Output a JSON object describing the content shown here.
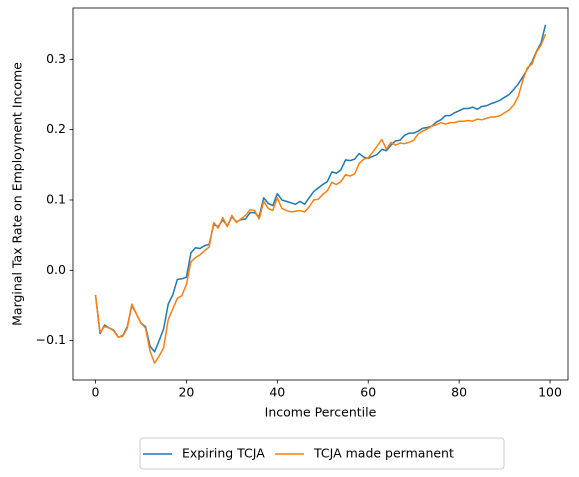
{
  "chart_data": {
    "type": "line",
    "x_label": "Income Percentile",
    "y_label": "Marginal Tax Rate on Employment Income",
    "x": [
      0,
      1,
      2,
      3,
      4,
      5,
      6,
      7,
      8,
      9,
      10,
      11,
      12,
      13,
      14,
      15,
      16,
      17,
      18,
      19,
      20,
      21,
      22,
      23,
      24,
      25,
      26,
      27,
      28,
      29,
      30,
      31,
      32,
      33,
      34,
      35,
      36,
      37,
      38,
      39,
      40,
      41,
      42,
      43,
      44,
      45,
      46,
      47,
      48,
      49,
      50,
      51,
      52,
      53,
      54,
      55,
      56,
      57,
      58,
      59,
      60,
      61,
      62,
      63,
      64,
      65,
      66,
      67,
      68,
      69,
      70,
      71,
      72,
      73,
      74,
      75,
      76,
      77,
      78,
      79,
      80,
      81,
      82,
      83,
      84,
      85,
      86,
      87,
      88,
      89,
      90,
      91,
      92,
      93,
      94,
      95,
      96,
      97,
      98,
      99
    ],
    "series": [
      {
        "name": "Expiring TCJA",
        "color": "#1f77b4",
        "values": [
          -0.035,
          -0.09,
          -0.078,
          -0.082,
          -0.085,
          -0.095,
          -0.093,
          -0.08,
          -0.05,
          -0.062,
          -0.075,
          -0.08,
          -0.108,
          -0.116,
          -0.1,
          -0.083,
          -0.048,
          -0.035,
          -0.013,
          -0.012,
          -0.01,
          0.025,
          0.032,
          0.031,
          0.035,
          0.037,
          0.065,
          0.062,
          0.072,
          0.063,
          0.076,
          0.069,
          0.072,
          0.073,
          0.082,
          0.082,
          0.076,
          0.103,
          0.095,
          0.092,
          0.109,
          0.1,
          0.098,
          0.096,
          0.094,
          0.098,
          0.094,
          0.103,
          0.112,
          0.117,
          0.122,
          0.126,
          0.14,
          0.138,
          0.143,
          0.157,
          0.156,
          0.158,
          0.166,
          0.161,
          0.159,
          0.162,
          0.165,
          0.172,
          0.17,
          0.178,
          0.184,
          0.185,
          0.192,
          0.195,
          0.195,
          0.198,
          0.202,
          0.203,
          0.205,
          0.211,
          0.214,
          0.22,
          0.22,
          0.224,
          0.227,
          0.23,
          0.23,
          0.232,
          0.229,
          0.233,
          0.234,
          0.237,
          0.239,
          0.242,
          0.246,
          0.25,
          0.257,
          0.265,
          0.275,
          0.286,
          0.296,
          0.311,
          0.323,
          0.349
        ]
      },
      {
        "name": "TCJA made permanent",
        "color": "#ff7f0e",
        "values": [
          -0.035,
          -0.088,
          -0.08,
          -0.082,
          -0.086,
          -0.095,
          -0.094,
          -0.082,
          -0.048,
          -0.062,
          -0.075,
          -0.082,
          -0.115,
          -0.132,
          -0.122,
          -0.11,
          -0.07,
          -0.055,
          -0.04,
          -0.036,
          -0.02,
          0.012,
          0.018,
          0.022,
          0.028,
          0.033,
          0.068,
          0.06,
          0.075,
          0.062,
          0.078,
          0.068,
          0.073,
          0.078,
          0.086,
          0.085,
          0.073,
          0.098,
          0.088,
          0.085,
          0.103,
          0.088,
          0.085,
          0.083,
          0.084,
          0.085,
          0.083,
          0.09,
          0.1,
          0.101,
          0.108,
          0.113,
          0.125,
          0.122,
          0.126,
          0.136,
          0.134,
          0.137,
          0.152,
          0.158,
          0.16,
          0.168,
          0.177,
          0.186,
          0.172,
          0.182,
          0.178,
          0.181,
          0.18,
          0.182,
          0.185,
          0.194,
          0.198,
          0.201,
          0.205,
          0.207,
          0.21,
          0.208,
          0.21,
          0.21,
          0.212,
          0.212,
          0.213,
          0.212,
          0.215,
          0.214,
          0.216,
          0.218,
          0.218,
          0.22,
          0.224,
          0.228,
          0.235,
          0.247,
          0.27,
          0.288,
          0.293,
          0.31,
          0.32,
          0.336
        ]
      }
    ],
    "xlim": [
      -4.95,
      103.95
    ],
    "ylim": [
      -0.156,
      0.373
    ],
    "xticks": [
      0,
      20,
      40,
      60,
      80,
      100
    ],
    "yticks": [
      {
        "value": -0.1,
        "label": "−0.1"
      },
      {
        "value": 0,
        "label": "0.0"
      },
      {
        "value": 0.1,
        "label": "0.1"
      },
      {
        "value": 0.2,
        "label": "0.2"
      },
      {
        "value": 0.3,
        "label": "0.3"
      }
    ],
    "grid": false,
    "legend": "below"
  }
}
